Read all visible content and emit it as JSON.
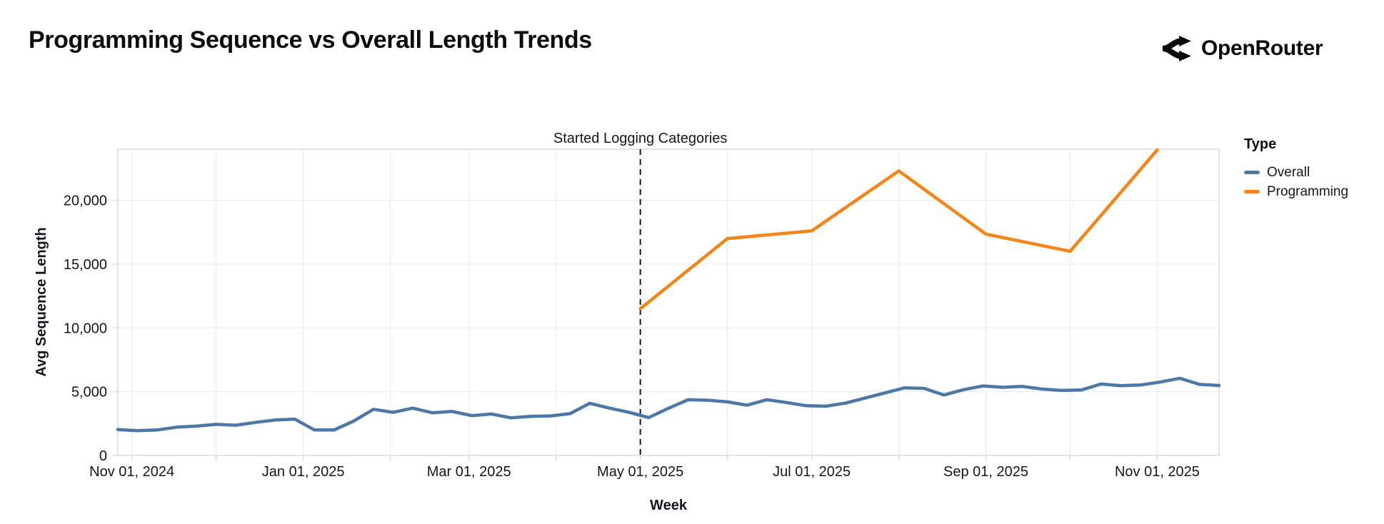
{
  "header": {
    "title": "Programming Sequence vs Overall Length Trends",
    "brand": "OpenRouter"
  },
  "chart_data": {
    "type": "line",
    "title": "Programming Sequence vs Overall Length Trends",
    "xlabel": "Week",
    "ylabel": "Avg Sequence Length",
    "ylim": [
      0,
      24000
    ],
    "x_domain": [
      "2024-10-27",
      "2025-11-23"
    ],
    "grid": true,
    "background": "#ffffff",
    "grid_color": "#e8e8ef",
    "frame_color": "#d9d9e0",
    "text_color": "#16161d",
    "annotation": {
      "label": "Started Logging Categories",
      "x": "2025-05-01",
      "rule_style": "dashed",
      "rule_color": "#16161d"
    },
    "legend": {
      "title": "Type",
      "position": "right",
      "entries": [
        {
          "name": "Overall",
          "color": "#4c78a8"
        },
        {
          "name": "Programming",
          "color": "#f58518"
        }
      ]
    },
    "y_ticks": [
      {
        "v": 0,
        "label": "0"
      },
      {
        "v": 5000,
        "label": "5,000"
      },
      {
        "v": 10000,
        "label": "10,000"
      },
      {
        "v": 15000,
        "label": "15,000"
      },
      {
        "v": 20000,
        "label": "20,000"
      }
    ],
    "x_ticks": [
      {
        "d": "2024-11-01",
        "label": "Nov 01, 2024"
      },
      {
        "d": "2024-12-01",
        "label": ""
      },
      {
        "d": "2025-01-01",
        "label": "Jan 01, 2025"
      },
      {
        "d": "2025-02-01",
        "label": ""
      },
      {
        "d": "2025-03-01",
        "label": "Mar 01, 2025"
      },
      {
        "d": "2025-04-01",
        "label": ""
      },
      {
        "d": "2025-05-01",
        "label": "May 01, 2025"
      },
      {
        "d": "2025-06-01",
        "label": ""
      },
      {
        "d": "2025-07-01",
        "label": "Jul 01, 2025"
      },
      {
        "d": "2025-08-01",
        "label": ""
      },
      {
        "d": "2025-09-01",
        "label": "Sep 01, 2025"
      },
      {
        "d": "2025-10-01",
        "label": ""
      },
      {
        "d": "2025-11-01",
        "label": "Nov 01, 2025"
      }
    ],
    "series": [
      {
        "name": "Overall",
        "color": "#4c78a8",
        "x": [
          "2024-10-27",
          "2024-11-03",
          "2024-11-10",
          "2024-11-17",
          "2024-11-24",
          "2024-12-01",
          "2024-12-08",
          "2024-12-15",
          "2024-12-22",
          "2024-12-29",
          "2025-01-05",
          "2025-01-12",
          "2025-01-19",
          "2025-01-26",
          "2025-02-02",
          "2025-02-09",
          "2025-02-16",
          "2025-02-23",
          "2025-03-02",
          "2025-03-09",
          "2025-03-16",
          "2025-03-23",
          "2025-03-30",
          "2025-04-06",
          "2025-04-13",
          "2025-04-20",
          "2025-04-27",
          "2025-05-04",
          "2025-05-11",
          "2025-05-18",
          "2025-05-25",
          "2025-06-01",
          "2025-06-08",
          "2025-06-15",
          "2025-06-22",
          "2025-06-29",
          "2025-07-06",
          "2025-07-13",
          "2025-07-20",
          "2025-07-27",
          "2025-08-03",
          "2025-08-10",
          "2025-08-17",
          "2025-08-24",
          "2025-08-31",
          "2025-09-07",
          "2025-09-14",
          "2025-09-21",
          "2025-09-28",
          "2025-10-05",
          "2025-10-12",
          "2025-10-19",
          "2025-10-26",
          "2025-11-02",
          "2025-11-09",
          "2025-11-16",
          "2025-11-23"
        ],
        "values": [
          2030,
          1940,
          2000,
          2220,
          2300,
          2440,
          2370,
          2590,
          2780,
          2850,
          2000,
          2000,
          2700,
          3620,
          3380,
          3710,
          3340,
          3450,
          3120,
          3250,
          2950,
          3060,
          3100,
          3280,
          4090,
          3710,
          3380,
          2970,
          3700,
          4370,
          4330,
          4200,
          3940,
          4370,
          4150,
          3900,
          3860,
          4100,
          4500,
          4900,
          5300,
          5260,
          4740,
          5150,
          5450,
          5340,
          5410,
          5200,
          5095,
          5130,
          5600,
          5470,
          5520,
          5750,
          6050,
          5570,
          5480
        ]
      },
      {
        "name": "Programming",
        "color": "#f58518",
        "x": [
          "2025-05-01",
          "2025-06-01",
          "2025-07-01",
          "2025-08-01",
          "2025-09-01",
          "2025-10-01",
          "2025-11-01"
        ],
        "values": [
          11500,
          17000,
          17600,
          22300,
          17350,
          16000,
          23950
        ]
      }
    ]
  }
}
